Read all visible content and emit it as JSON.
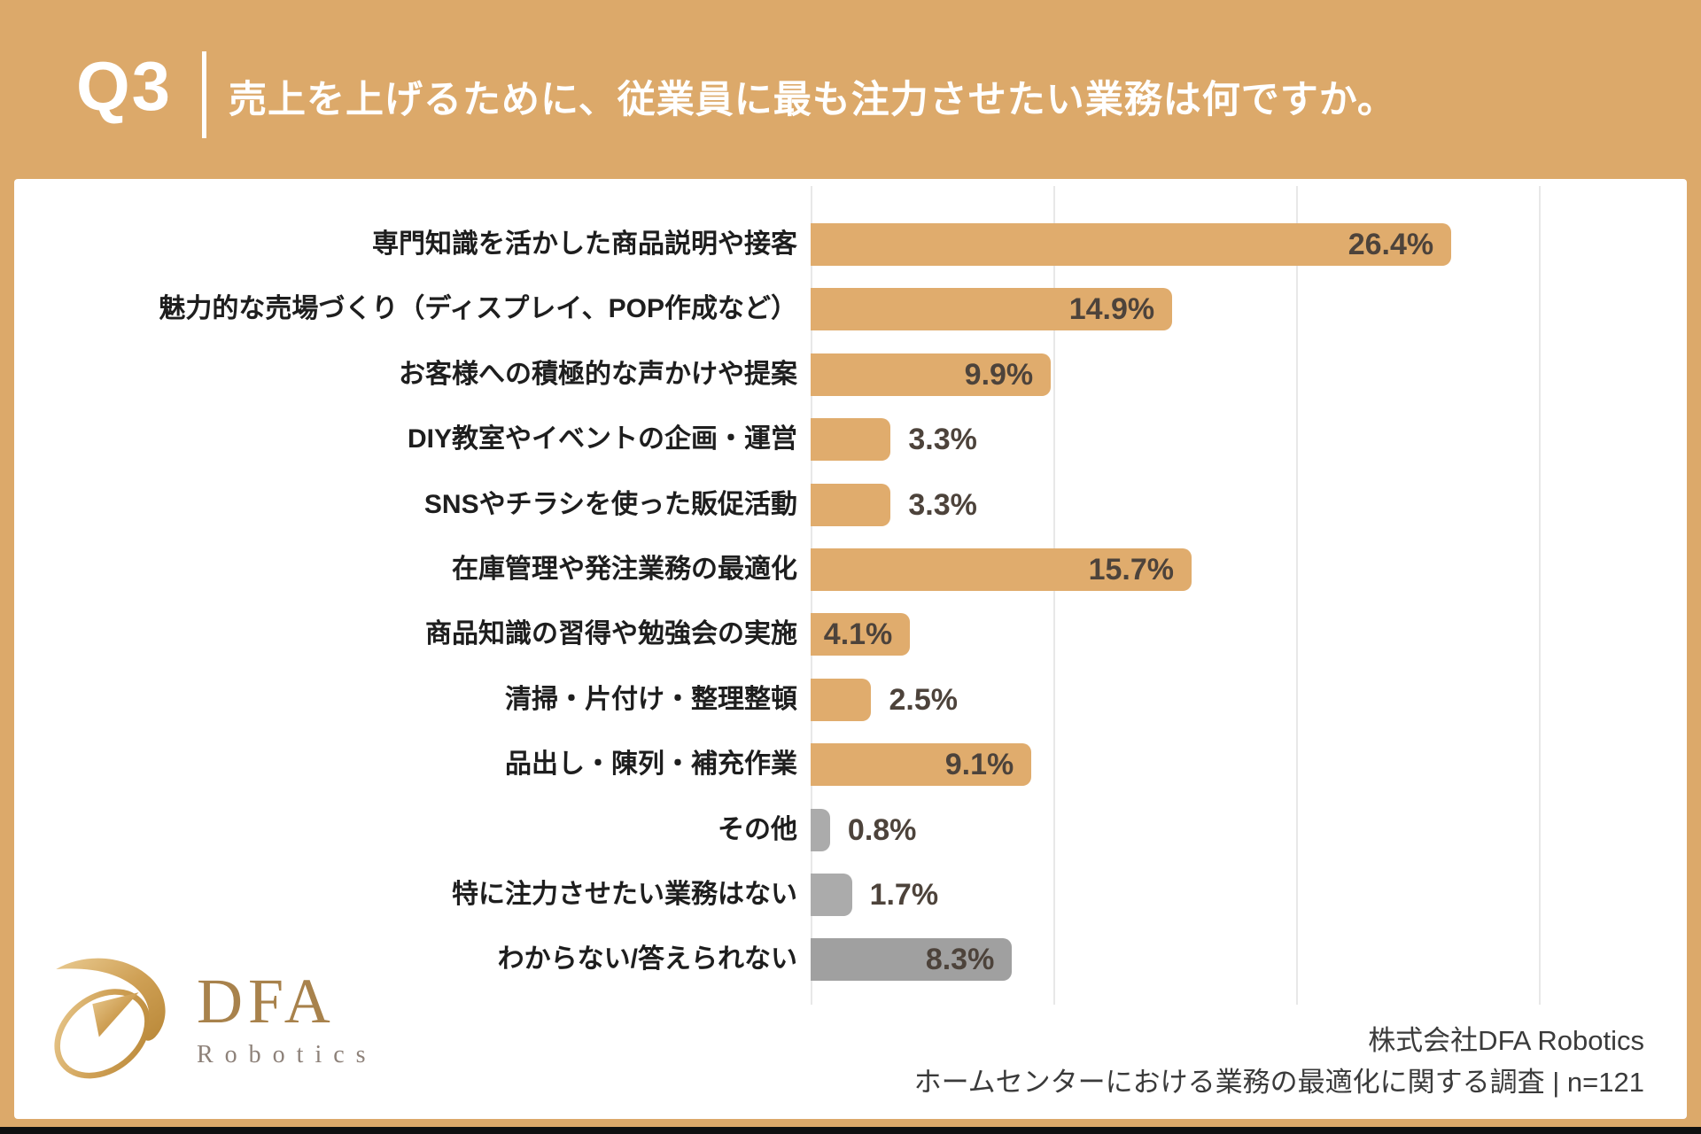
{
  "header": {
    "q_label": "Q3",
    "title": "売上を上げるために、従業員に最も注力させたい業務は何ですか。"
  },
  "chart_data": {
    "type": "bar",
    "orientation": "horizontal",
    "title": "売上を上げるために、従業員に最も注力させたい業務は何ですか。",
    "unit": "%",
    "categories": [
      "専門知識を活かした商品説明や接客",
      "魅力的な売場づくり（ディスプレイ、POP作成など）",
      "お客様への積極的な声かけや提案",
      "DIY教室やイベントの企画・運営",
      "SNSやチラシを使った販促活動",
      "在庫管理や発注業務の最適化",
      "商品知識の習得や勉強会の実施",
      "清掃・片付け・整理整頓",
      "品出し・陳列・補充作業",
      "その他",
      "特に注力させたい業務はない",
      "わからない/答えられない"
    ],
    "values": [
      26.4,
      14.9,
      9.9,
      3.3,
      3.3,
      15.7,
      4.1,
      2.5,
      9.1,
      0.8,
      1.7,
      8.3
    ],
    "value_labels": [
      "26.4%",
      "14.9%",
      "9.9%",
      "3.3%",
      "3.3%",
      "15.7%",
      "4.1%",
      "2.5%",
      "9.1%",
      "0.8%",
      "1.7%",
      "8.3%"
    ],
    "bar_colors": [
      "#E0AC6D",
      "#E0AC6D",
      "#E0AC6D",
      "#E0AC6D",
      "#E0AC6D",
      "#E0AC6D",
      "#E0AC6D",
      "#E0AC6D",
      "#E0AC6D",
      "#ABABAB",
      "#ABABAB",
      "#A0A0A0"
    ],
    "xlim": [
      0,
      35
    ],
    "gridlines": [
      0,
      10,
      20,
      30
    ],
    "grid": true,
    "legend": "none"
  },
  "footer": {
    "company": "株式会社DFA Robotics",
    "survey": "ホームセンターにおける業務の最適化に関する調査 | n=121"
  },
  "logo": {
    "main": "DFA",
    "sub": "Robotics"
  },
  "colors": {
    "background": "#DCA96A",
    "card": "#FFFFFF",
    "bar_gold": "#E0AC6D",
    "bar_gray": "#ABABAB",
    "header_text": "#FFFFFF",
    "category_text": "#1E1E1E",
    "value_text": "#4D433B",
    "grid": "#E8E8E8",
    "footer_text": "#3A3A3A",
    "logo_gold": "#A8824C"
  }
}
